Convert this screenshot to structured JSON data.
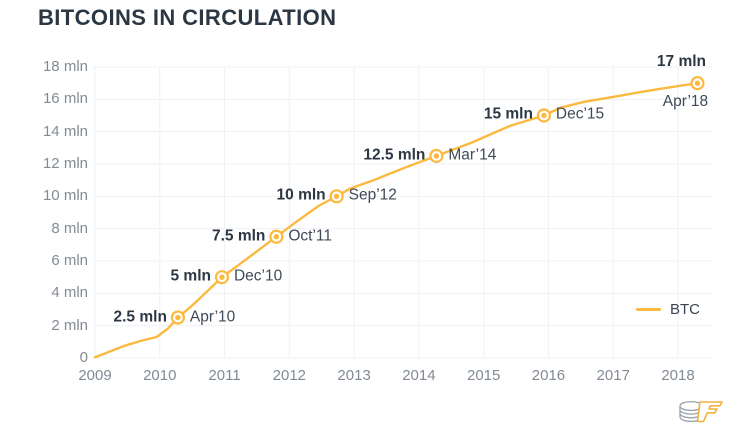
{
  "chart_data": {
    "type": "line",
    "title": "BITCOINS IN CIRCULATION",
    "xlabel": "",
    "ylabel": "",
    "xlim": [
      2009,
      2018.55
    ],
    "ylim": [
      0,
      18
    ],
    "grid": true,
    "legend_position": "right-middle",
    "x_ticks": [
      "2009",
      "2010",
      "2011",
      "2012",
      "2013",
      "2014",
      "2015",
      "2016",
      "2017",
      "2018"
    ],
    "y_ticks": [
      {
        "v": 0,
        "label": "0"
      },
      {
        "v": 2,
        "label": "2 mln"
      },
      {
        "v": 4,
        "label": "4 mln"
      },
      {
        "v": 6,
        "label": "6 mln"
      },
      {
        "v": 8,
        "label": "8 mln"
      },
      {
        "v": 10,
        "label": "10 mln"
      },
      {
        "v": 12,
        "label": "12 mln"
      },
      {
        "v": 14,
        "label": "14 mln"
      },
      {
        "v": 16,
        "label": "16 mln"
      },
      {
        "v": 18,
        "label": "18 mln"
      }
    ],
    "series": [
      {
        "name": "BTC",
        "color": "#FBBA3F",
        "points": [
          [
            2009.0,
            0.05
          ],
          [
            2009.2,
            0.35
          ],
          [
            2009.45,
            0.75
          ],
          [
            2009.7,
            1.05
          ],
          [
            2009.95,
            1.3
          ],
          [
            2010.12,
            1.8
          ],
          [
            2010.28,
            2.5
          ],
          [
            2010.5,
            3.25
          ],
          [
            2010.75,
            4.2
          ],
          [
            2010.96,
            5.0
          ],
          [
            2011.2,
            5.7
          ],
          [
            2011.5,
            6.6
          ],
          [
            2011.8,
            7.5
          ],
          [
            2012.1,
            8.4
          ],
          [
            2012.45,
            9.4
          ],
          [
            2012.73,
            10.0
          ],
          [
            2012.95,
            10.5
          ],
          [
            2013.3,
            11.0
          ],
          [
            2013.8,
            11.8
          ],
          [
            2014.27,
            12.5
          ],
          [
            2014.8,
            13.3
          ],
          [
            2015.4,
            14.35
          ],
          [
            2015.93,
            15.0
          ],
          [
            2016.2,
            15.5
          ],
          [
            2016.55,
            15.85
          ],
          [
            2017.0,
            16.15
          ],
          [
            2017.5,
            16.5
          ],
          [
            2018.0,
            16.82
          ],
          [
            2018.3,
            17.0
          ]
        ]
      }
    ],
    "annotations": [
      {
        "value_label": "2.5 mln",
        "date_label": "Apr’10",
        "x": 2010.28,
        "y": 2.5,
        "layout": "side"
      },
      {
        "value_label": "5 mln",
        "date_label": "Dec’10",
        "x": 2010.96,
        "y": 5,
        "layout": "side"
      },
      {
        "value_label": "7.5 mln",
        "date_label": "Oct’11",
        "x": 2011.8,
        "y": 7.5,
        "layout": "side"
      },
      {
        "value_label": "10 mln",
        "date_label": "Sep’12",
        "x": 2012.73,
        "y": 10,
        "layout": "side"
      },
      {
        "value_label": "12.5 mln",
        "date_label": "Mar’14",
        "x": 2014.27,
        "y": 12.5,
        "layout": "side"
      },
      {
        "value_label": "15 mln",
        "date_label": "Dec’15",
        "x": 2015.93,
        "y": 15,
        "layout": "side"
      },
      {
        "value_label": "17 mln",
        "date_label": "Apr’18",
        "x": 2018.3,
        "y": 17,
        "layout": "stacked"
      }
    ]
  },
  "colors": {
    "accent": "#FBBA3F",
    "title_text": "#2B3743",
    "value_text": "#2B3743",
    "date_text": "#3E4A57",
    "axis_text": "#828B95",
    "gridline": "#F0F1F4",
    "logo_gray": "#9AA3AC"
  },
  "icons": {
    "logo": "coin-stack-logo"
  }
}
